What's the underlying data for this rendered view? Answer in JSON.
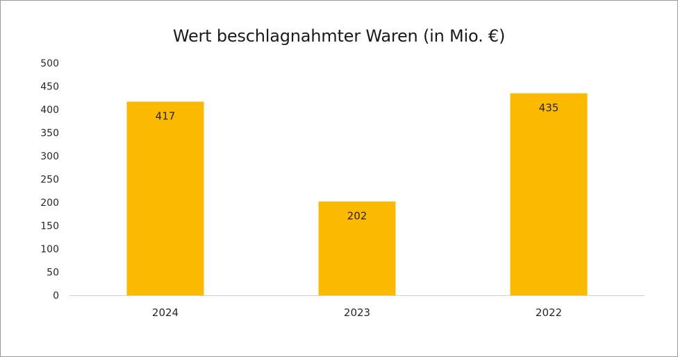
{
  "chart_data": {
    "type": "bar",
    "title": "Wert beschlagnahmter Waren (in Mio. €)",
    "categories": [
      "2024",
      "2023",
      "2022"
    ],
    "series": [
      {
        "name": "Wert beschlagnahmter Waren",
        "values": [
          417,
          202,
          435
        ]
      }
    ],
    "data_labels": [
      "417",
      "202",
      "435"
    ],
    "y_ticks": [
      "0",
      "50",
      "100",
      "150",
      "200",
      "250",
      "300",
      "350",
      "400",
      "450",
      "500"
    ],
    "ylim": [
      0,
      500
    ],
    "xlabel": "",
    "ylabel": "",
    "grid": false,
    "legend": "none",
    "bar_color": "#FBBA00"
  }
}
